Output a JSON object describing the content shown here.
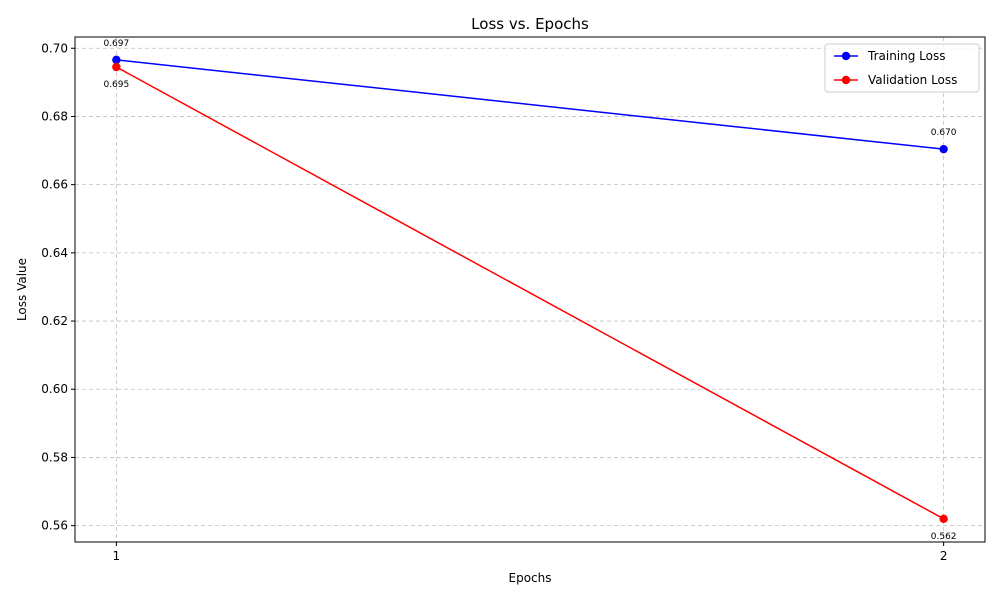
{
  "chart_data": {
    "type": "line",
    "title": "Loss vs. Epochs",
    "xlabel": "Epochs",
    "ylabel": "Loss Value",
    "x": [
      1,
      2
    ],
    "xticks": [
      1,
      2
    ],
    "yticks": [
      0.56,
      0.58,
      0.6,
      0.62,
      0.64,
      0.66,
      0.68,
      0.7
    ],
    "ytick_labels": [
      "0.56",
      "0.58",
      "0.60",
      "0.62",
      "0.64",
      "0.66",
      "0.68",
      "0.70"
    ],
    "xlim": [
      0.95,
      2.05
    ],
    "ylim": [
      0.5552,
      0.7033
    ],
    "grid": true,
    "legend_position": "top-right",
    "series": [
      {
        "name": "Training Loss",
        "color": "#0000ff",
        "values": [
          0.6966,
          0.6704
        ],
        "labels": [
          "0.697",
          "0.670"
        ],
        "label_side": [
          "above",
          "above"
        ]
      },
      {
        "name": "Validation Loss",
        "color": "#ff0000",
        "values": [
          0.6945,
          0.562
        ],
        "labels": [
          "0.695",
          "0.562"
        ],
        "label_side": [
          "below",
          "below"
        ]
      }
    ]
  }
}
